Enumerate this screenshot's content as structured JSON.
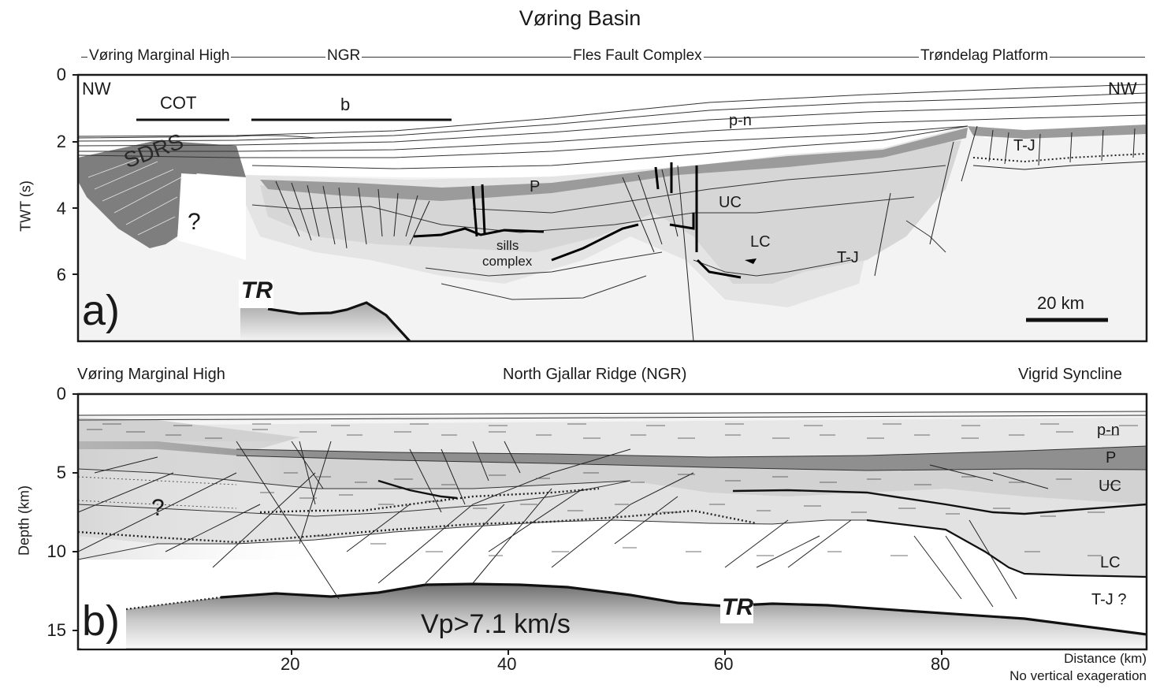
{
  "figure": {
    "title": "Vøring Basin"
  },
  "panel_a": {
    "regions": [
      "Vøring Marginal High",
      "NGR",
      "Fles Fault Complex",
      "Trøndelag Platform"
    ],
    "y_axis_label": "TWT (s)",
    "y_ticks": [
      "0",
      "2",
      "4",
      "6"
    ],
    "corner_left": "NW",
    "corner_right": "NW",
    "bars": [
      "COT",
      "b"
    ],
    "panel_label": "a)",
    "scale_bar": "20 km",
    "annotations": {
      "sdrs": "SDRS",
      "question": "?",
      "p_n": "p-n",
      "tj_right": "T-J",
      "p": "P",
      "uc": "UC",
      "lc": "LC",
      "tj_mid": "T-J",
      "sills_1": "sills",
      "sills_2": "complex",
      "tr": "TR"
    }
  },
  "panel_b": {
    "left_title": "Vøring Marginal High",
    "center_title": "North Gjallar Ridge (NGR)",
    "right_title": "Vigrid Syncline",
    "y_axis_label": "Depth (km)",
    "y_ticks": [
      "0",
      "5",
      "10",
      "15"
    ],
    "x_ticks": [
      "20",
      "40",
      "60",
      "80"
    ],
    "x_axis_label": "Distance (km)",
    "x_axis_note": "No vertical exageration",
    "panel_label": "b)",
    "annotations": {
      "p_n": "p-n",
      "p": "P",
      "uc": "UC",
      "lc": "LC",
      "tj": "T-J ?",
      "question": "?",
      "tr": "TR",
      "vp": "Vp>7.1 km/s"
    }
  },
  "colors": {
    "dark_unit": "#8c8c8c",
    "medium_unit": "#c8c8c8",
    "light_unit": "#e6e6e6",
    "pale_unit": "#f0f0f0",
    "frame": "#1a1a1a"
  }
}
